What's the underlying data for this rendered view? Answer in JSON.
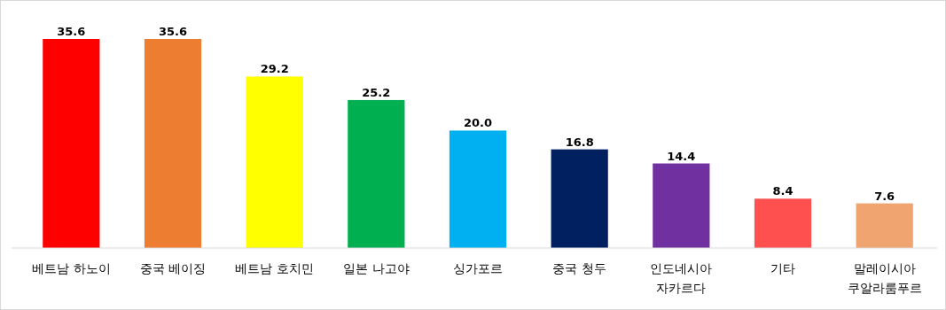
{
  "chart_data": {
    "type": "bar",
    "categories": [
      "베트남 하노이",
      "중국 베이징",
      "베트남 호치민",
      "일본 나고야",
      "싱가포르",
      "중국 청두",
      "인도네시아\n자카르다",
      "기타",
      "말레이시아\n쿠알라룸푸르"
    ],
    "values": [
      35.6,
      35.6,
      29.2,
      25.2,
      20.0,
      16.8,
      14.4,
      8.4,
      7.6
    ],
    "value_labels": [
      "35.6",
      "35.6",
      "29.2",
      "25.2",
      "20.0",
      "16.8",
      "14.4",
      "8.4",
      "7.6"
    ],
    "colors": [
      "#ff0000",
      "#ed7d31",
      "#ffff00",
      "#00b050",
      "#00b0f0",
      "#002060",
      "#7030a0",
      "#ff5050",
      "#f0a470"
    ]
  }
}
